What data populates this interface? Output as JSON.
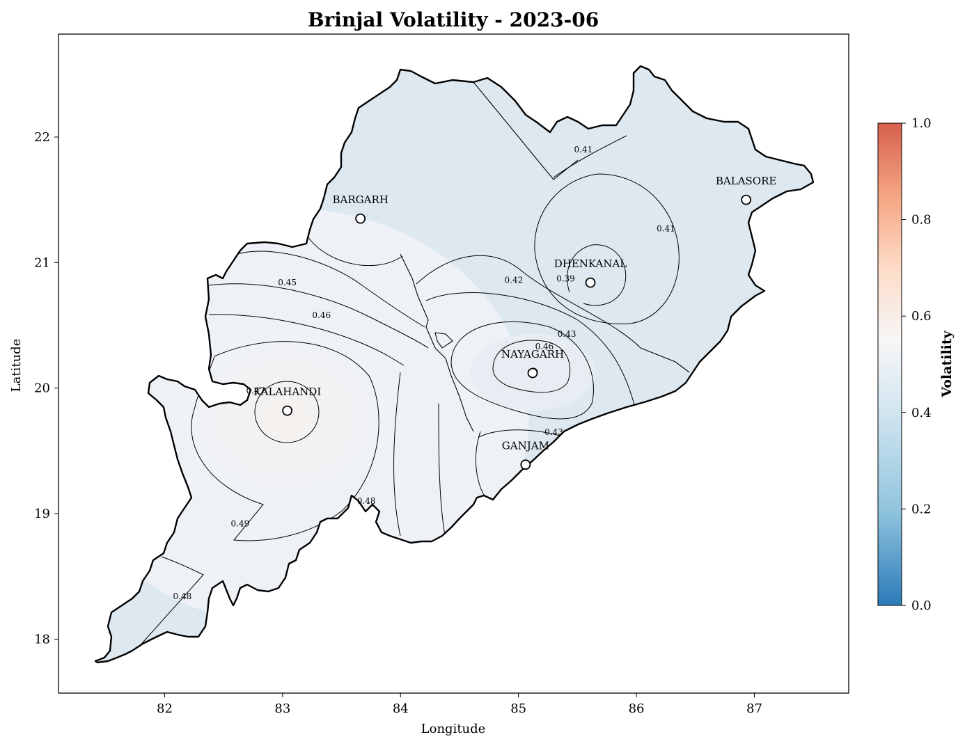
{
  "title": "Brinjal Volatility - 2023-06",
  "axes": {
    "xlabel": "Longitude",
    "ylabel": "Latitude",
    "xlim": [
      81.1,
      87.8
    ],
    "ylim": [
      17.57,
      22.82
    ],
    "xticks": [
      "82",
      "83",
      "84",
      "85",
      "86",
      "87"
    ],
    "yticks": [
      "18",
      "19",
      "20",
      "21",
      "22"
    ]
  },
  "colorbar": {
    "label": "Volatility",
    "range": [
      0.0,
      1.0
    ],
    "ticks": [
      "0.0",
      "0.2",
      "0.4",
      "0.6",
      "0.8",
      "1.0"
    ],
    "colors": [
      "#2b7bb9",
      "#92c5de",
      "#d1e5f0",
      "#f7f7f7",
      "#fddbc7",
      "#f4a582",
      "#d6604d"
    ]
  },
  "markers": [
    {
      "name": "BARGARH",
      "lon": 83.66,
      "lat": 21.35
    },
    {
      "name": "BALASORE",
      "lon": 86.93,
      "lat": 21.5
    },
    {
      "name": "DHENKANAL",
      "lon": 85.61,
      "lat": 20.84
    },
    {
      "name": "NAYAGARH",
      "lon": 85.12,
      "lat": 20.12
    },
    {
      "name": "KALAHANDI",
      "lon": 83.04,
      "lat": 19.82
    },
    {
      "name": "GANJAM",
      "lon": 85.06,
      "lat": 19.39
    }
  ],
  "contour_labels": [
    {
      "text": "0.41",
      "lon": 85.55,
      "lat": 21.9
    },
    {
      "text": "0.41",
      "lon": 86.25,
      "lat": 21.27
    },
    {
      "text": "0.39",
      "lon": 85.4,
      "lat": 20.87
    },
    {
      "text": "0.42",
      "lon": 84.96,
      "lat": 20.86
    },
    {
      "text": "0.45",
      "lon": 83.04,
      "lat": 20.84
    },
    {
      "text": "0.46",
      "lon": 83.33,
      "lat": 20.58
    },
    {
      "text": "0.43",
      "lon": 85.41,
      "lat": 20.43
    },
    {
      "text": "0.46",
      "lon": 85.22,
      "lat": 20.33
    },
    {
      "text": "0.43",
      "lon": 85.3,
      "lat": 19.65
    },
    {
      "text": "0.48",
      "lon": 83.71,
      "lat": 19.1
    },
    {
      "text": "0.49",
      "lon": 82.64,
      "lat": 18.92
    },
    {
      "text": "0.48",
      "lon": 82.15,
      "lat": 18.34
    },
    {
      "text": "0.47",
      "lon": 82.77,
      "lat": 19.98
    }
  ]
}
